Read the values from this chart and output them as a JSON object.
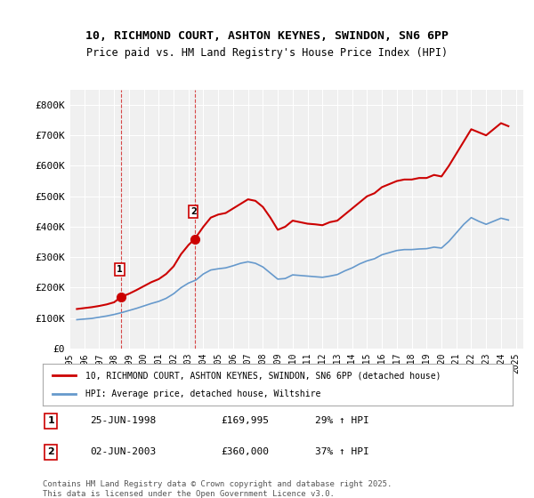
{
  "title_line1": "10, RICHMOND COURT, ASHTON KEYNES, SWINDON, SN6 6PP",
  "title_line2": "Price paid vs. HM Land Registry's House Price Index (HPI)",
  "ylabel": "",
  "ylim": [
    0,
    850000
  ],
  "yticks": [
    0,
    100000,
    200000,
    300000,
    400000,
    500000,
    600000,
    700000,
    800000
  ],
  "ytick_labels": [
    "£0",
    "£100K",
    "£200K",
    "£300K",
    "£400K",
    "£500K",
    "£600K",
    "£700K",
    "£800K"
  ],
  "red_color": "#cc0000",
  "blue_color": "#6699cc",
  "legend_label_red": "10, RICHMOND COURT, ASHTON KEYNES, SWINDON, SN6 6PP (detached house)",
  "legend_label_blue": "HPI: Average price, detached house, Wiltshire",
  "marker1_date": 1998.49,
  "marker1_price": 169995,
  "marker1_label": "1",
  "marker1_text": "25-JUN-1998    £169,995    29% ↑ HPI",
  "marker2_date": 2003.42,
  "marker2_price": 360000,
  "marker2_label": "2",
  "marker2_text": "02-JUN-2003    £360,000    37% ↑ HPI",
  "footnote": "Contains HM Land Registry data © Crown copyright and database right 2025.\nThis data is licensed under the Open Government Licence v3.0.",
  "background_color": "#ffffff",
  "plot_bg_color": "#f0f0f0",
  "red_hpi_years": [
    1995.5,
    1996.0,
    1996.5,
    1997.0,
    1997.5,
    1998.0,
    1998.49,
    1999.0,
    1999.5,
    2000.0,
    2000.5,
    2001.0,
    2001.5,
    2002.0,
    2002.5,
    2003.0,
    2003.42,
    2004.0,
    2004.5,
    2005.0,
    2005.5,
    2006.0,
    2006.5,
    2007.0,
    2007.5,
    2008.0,
    2008.5,
    2009.0,
    2009.5,
    2010.0,
    2010.5,
    2011.0,
    2011.5,
    2012.0,
    2012.5,
    2013.0,
    2013.5,
    2014.0,
    2014.5,
    2015.0,
    2015.5,
    2016.0,
    2016.5,
    2017.0,
    2017.5,
    2018.0,
    2018.5,
    2019.0,
    2019.5,
    2020.0,
    2020.5,
    2021.0,
    2021.5,
    2022.0,
    2022.5,
    2023.0,
    2023.5,
    2024.0,
    2024.5
  ],
  "red_hpi_values": [
    130000,
    133000,
    136000,
    140000,
    145000,
    152000,
    169995,
    180000,
    192000,
    205000,
    218000,
    228000,
    245000,
    270000,
    310000,
    340000,
    360000,
    400000,
    430000,
    440000,
    445000,
    460000,
    475000,
    490000,
    485000,
    465000,
    430000,
    390000,
    400000,
    420000,
    415000,
    410000,
    408000,
    405000,
    415000,
    420000,
    440000,
    460000,
    480000,
    500000,
    510000,
    530000,
    540000,
    550000,
    555000,
    555000,
    560000,
    560000,
    570000,
    565000,
    600000,
    640000,
    680000,
    720000,
    710000,
    700000,
    720000,
    740000,
    730000
  ],
  "blue_hpi_years": [
    1995.5,
    1996.0,
    1996.5,
    1997.0,
    1997.5,
    1998.0,
    1998.5,
    1999.0,
    1999.5,
    2000.0,
    2000.5,
    2001.0,
    2001.5,
    2002.0,
    2002.5,
    2003.0,
    2003.5,
    2004.0,
    2004.5,
    2005.0,
    2005.5,
    2006.0,
    2006.5,
    2007.0,
    2007.5,
    2008.0,
    2008.5,
    2009.0,
    2009.5,
    2010.0,
    2010.5,
    2011.0,
    2011.5,
    2012.0,
    2012.5,
    2013.0,
    2013.5,
    2014.0,
    2014.5,
    2015.0,
    2015.5,
    2016.0,
    2016.5,
    2017.0,
    2017.5,
    2018.0,
    2018.5,
    2019.0,
    2019.5,
    2020.0,
    2020.5,
    2021.0,
    2021.5,
    2022.0,
    2022.5,
    2023.0,
    2023.5,
    2024.0,
    2024.5
  ],
  "blue_hpi_values": [
    95000,
    97000,
    99000,
    103000,
    107000,
    112000,
    118000,
    125000,
    132000,
    140000,
    148000,
    155000,
    165000,
    180000,
    200000,
    215000,
    225000,
    245000,
    258000,
    262000,
    265000,
    272000,
    280000,
    285000,
    280000,
    268000,
    248000,
    228000,
    230000,
    242000,
    240000,
    238000,
    236000,
    234000,
    238000,
    243000,
    255000,
    265000,
    278000,
    288000,
    295000,
    308000,
    315000,
    322000,
    325000,
    325000,
    327000,
    328000,
    333000,
    330000,
    352000,
    380000,
    408000,
    430000,
    418000,
    408000,
    418000,
    428000,
    422000
  ]
}
